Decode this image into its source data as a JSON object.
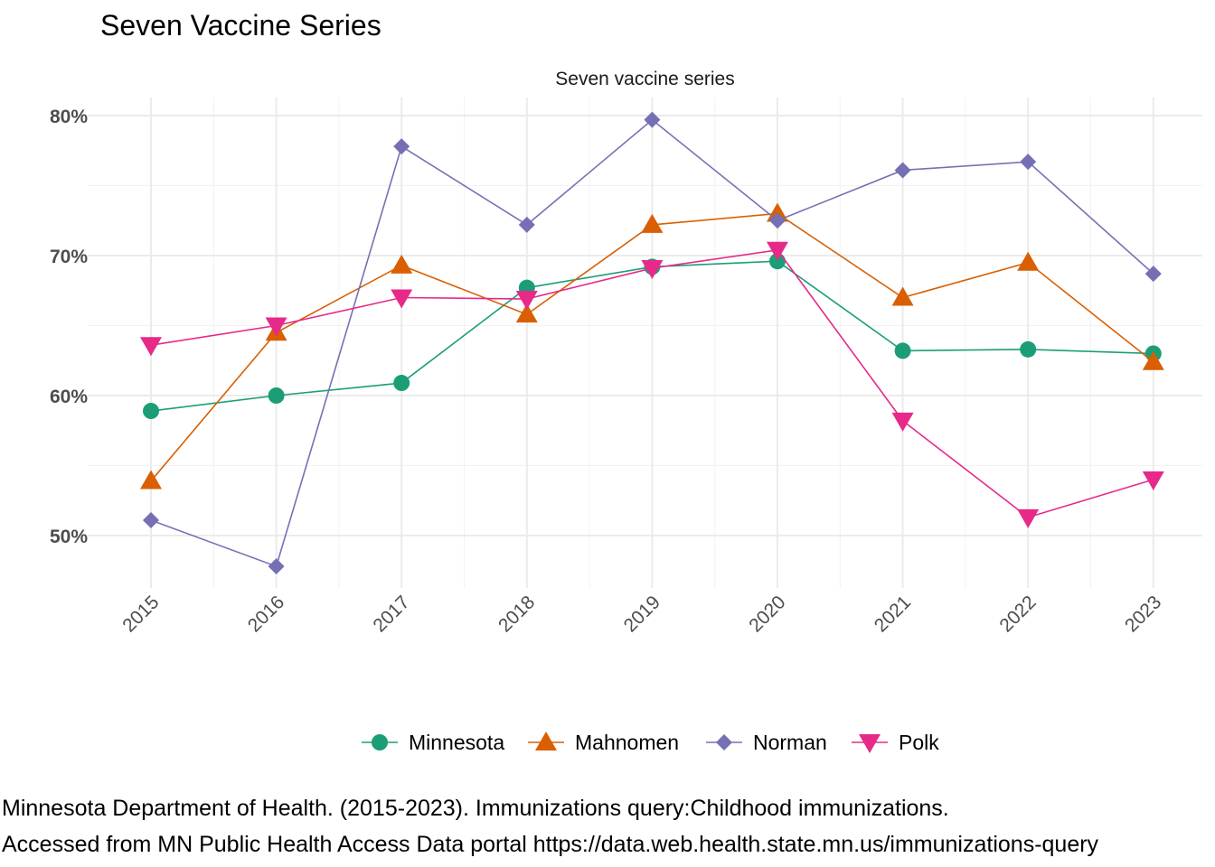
{
  "chart_data": {
    "type": "line",
    "title": "Seven Vaccine Series",
    "facet_label": "Seven vaccine series",
    "x": [
      "2015",
      "2016",
      "2017",
      "2018",
      "2019",
      "2020",
      "2021",
      "2022",
      "2023"
    ],
    "y_ticks": [
      "50%",
      "60%",
      "70%",
      "80%"
    ],
    "ylim": [
      46.5,
      81.5
    ],
    "grid": true,
    "legend_position": "bottom",
    "series": [
      {
        "name": "Minnesota",
        "color": "#1B9E77",
        "marker": "circle",
        "values": [
          58.9,
          60.0,
          60.9,
          67.7,
          69.2,
          69.6,
          63.2,
          63.3,
          63.0
        ]
      },
      {
        "name": "Mahnomen",
        "color": "#D95F02",
        "marker": "triangle-up",
        "values": [
          53.9,
          64.5,
          69.3,
          65.8,
          72.2,
          73.0,
          67.0,
          69.5,
          62.4
        ]
      },
      {
        "name": "Norman",
        "color": "#7570B3",
        "marker": "diamond",
        "values": [
          51.1,
          47.8,
          77.8,
          72.2,
          79.7,
          72.5,
          76.1,
          76.7,
          68.7
        ]
      },
      {
        "name": "Polk",
        "color": "#E7298A",
        "marker": "triangle-down",
        "values": [
          63.6,
          65.0,
          67.0,
          66.9,
          69.1,
          70.4,
          58.2,
          51.3,
          54.0
        ]
      }
    ]
  },
  "caption": {
    "line1": "Minnesota Department of Health. (2015-2023). Immunizations query:Childhood immunizations.",
    "line2": "Accessed from MN Public Health Access Data portal https://data.web.health.state.mn.us/immunizations-query"
  }
}
